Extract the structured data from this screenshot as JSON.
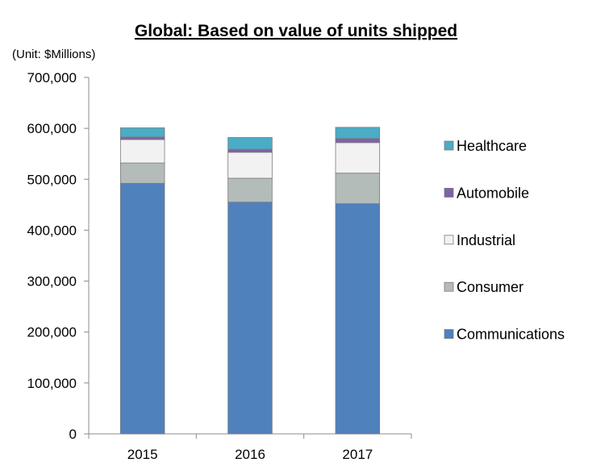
{
  "chart_data": {
    "type": "bar",
    "stacked": true,
    "title": "Global: Based on value of units shipped",
    "unit_label": "(Unit: $Millions)",
    "xlabel": "",
    "ylabel": "",
    "ylim": [
      0,
      700000
    ],
    "y_ticks": [
      0,
      100000,
      200000,
      300000,
      400000,
      500000,
      600000,
      700000
    ],
    "y_tick_labels": [
      "0",
      "100,000",
      "200,000",
      "300,000",
      "400,000",
      "500,000",
      "600,000",
      "700,000"
    ],
    "categories": [
      "2015",
      "2016",
      "2017"
    ],
    "series": [
      {
        "name": "Communications",
        "color": "#4f81bd",
        "values": [
          492000,
          455000,
          452000
        ]
      },
      {
        "name": "Consumer",
        "color": "#b3bcb9",
        "values": [
          40000,
          47000,
          60000
        ]
      },
      {
        "name": "Industrial",
        "color": "#f2f2f2",
        "values": [
          46000,
          51000,
          60000
        ]
      },
      {
        "name": "Automobile",
        "color": "#7f62a8",
        "values": [
          5000,
          6000,
          8000
        ]
      },
      {
        "name": "Healthcare",
        "color": "#4bacc6",
        "values": [
          18000,
          23000,
          22000
        ]
      }
    ],
    "legend_order": [
      "Healthcare",
      "Automobile",
      "Industrial",
      "Consumer",
      "Communications"
    ],
    "legend_position": "right",
    "grid": false
  }
}
